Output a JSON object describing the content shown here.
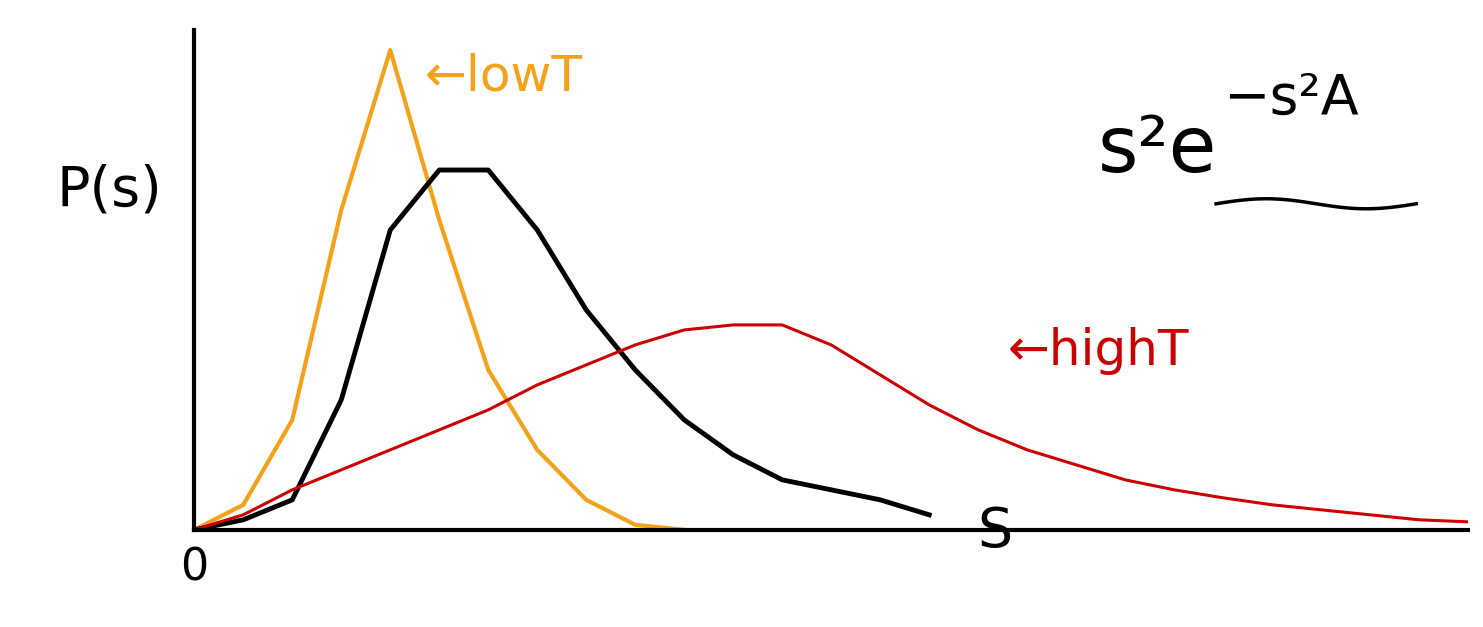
{
  "chart_data": {
    "type": "line",
    "y_label": "P(s)",
    "x_label": "S",
    "formula": {
      "base": "s²e",
      "exponent": "−s²A"
    },
    "annotations": [
      {
        "text": "←lowT",
        "color": "#f5a21b"
      },
      {
        "text": "←highT",
        "color": "#cc0000"
      }
    ],
    "x": [
      0,
      0.5,
      1,
      1.5,
      2,
      2.5,
      3,
      3.5,
      4,
      4.5,
      5,
      5.5,
      6,
      6.5,
      7,
      7.5,
      8,
      8.5,
      9,
      9.5,
      10,
      10.5,
      11,
      11.5,
      12,
      12.5,
      13
    ],
    "series": [
      {
        "color": "#f5a21b",
        "line_style": "solid",
        "values": [
          0,
          0.25,
          1.1,
          3.2,
          4.8,
          3.1,
          1.6,
          0.8,
          0.3,
          0.05,
          0,
          null,
          null,
          null,
          null,
          null,
          null,
          null,
          null,
          null,
          null,
          null,
          null,
          null,
          null,
          null,
          null
        ]
      },
      {
        "color": "#000000",
        "line_style": "solid",
        "values": [
          0,
          0.1,
          0.3,
          1.3,
          3.0,
          3.6,
          3.6,
          3.0,
          2.2,
          1.6,
          1.1,
          0.75,
          0.5,
          0.4,
          0.3,
          0.15,
          null,
          null,
          null,
          null,
          null,
          null,
          null,
          null,
          null,
          null,
          null
        ]
      },
      {
        "color": "#cc0000",
        "line_style": "solid",
        "values": [
          0,
          0.15,
          0.4,
          0.6,
          0.8,
          1.0,
          1.2,
          1.45,
          1.65,
          1.85,
          2.0,
          2.05,
          2.05,
          1.85,
          1.55,
          1.25,
          1.0,
          0.8,
          0.65,
          0.5,
          0.4,
          0.32,
          0.25,
          0.2,
          0.15,
          0.1,
          0.08
        ]
      }
    ],
    "xlim": [
      0,
      13
    ],
    "ylim": [
      0,
      5
    ],
    "xticks": [
      0
    ],
    "yticks": [],
    "tick_labels": "x",
    "grid": false
  }
}
